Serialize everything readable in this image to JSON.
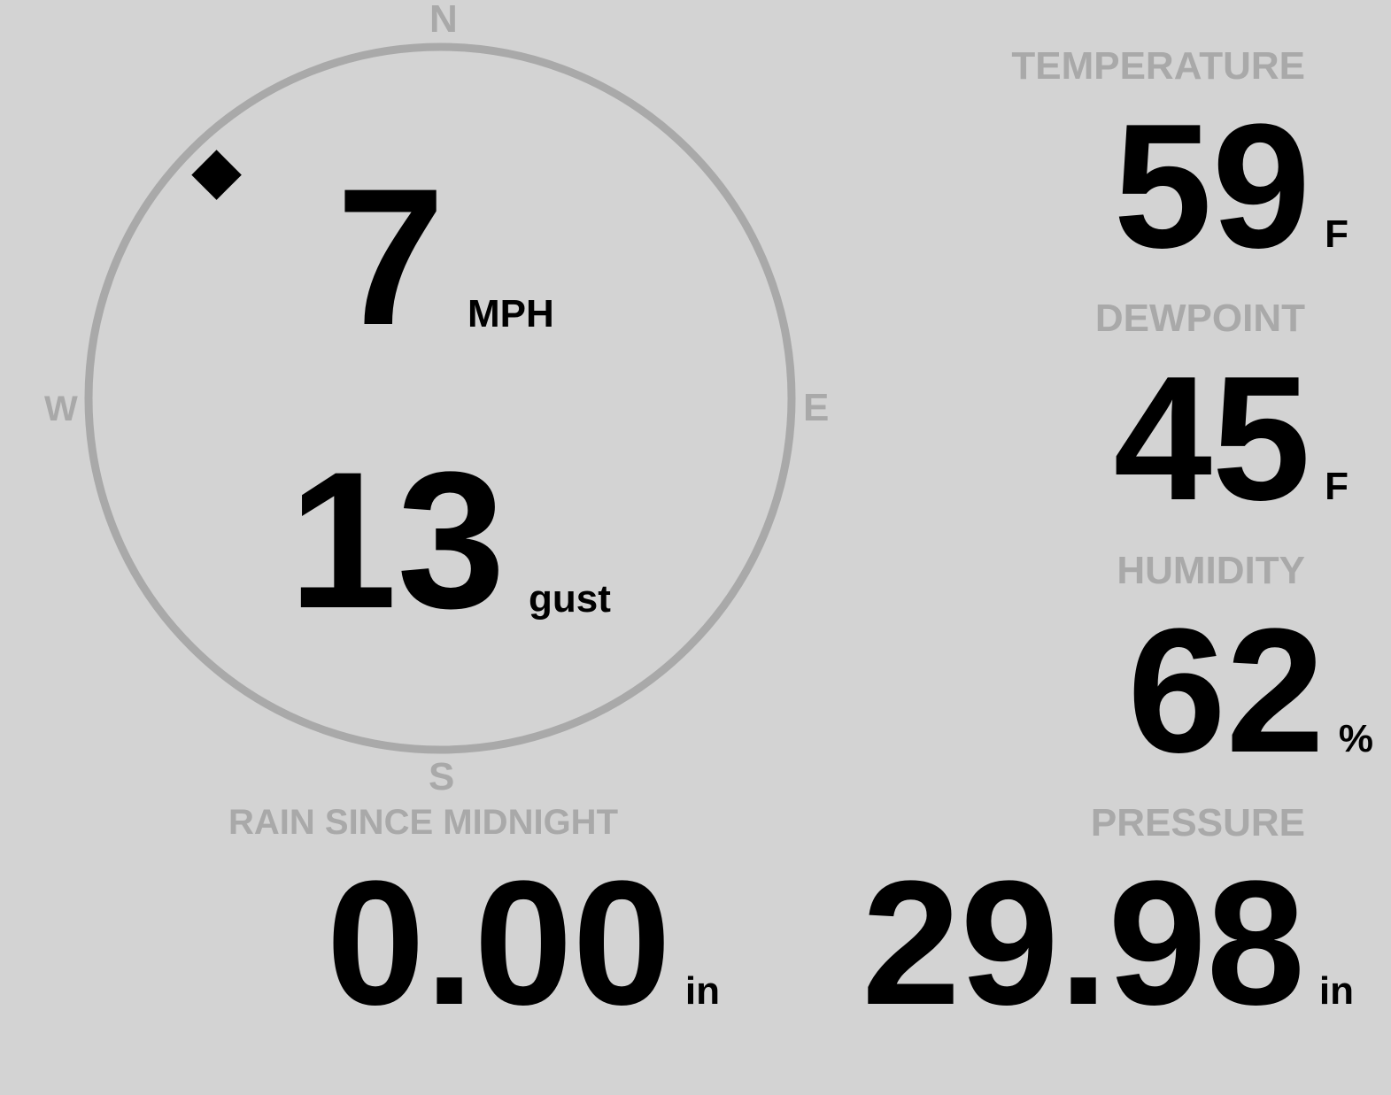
{
  "compass": {
    "n": "N",
    "e": "E",
    "s": "S",
    "w": "W",
    "wind_direction_deg": 315,
    "ring_color": "#a9a9a9"
  },
  "wind": {
    "speed": "7",
    "speed_unit": "MPH",
    "gust": "13",
    "gust_unit": "gust"
  },
  "temperature": {
    "label": "TEMPERATURE",
    "value": "59",
    "unit": "F"
  },
  "dewpoint": {
    "label": "DEWPOINT",
    "value": "45",
    "unit": "F"
  },
  "humidity": {
    "label": "HUMIDITY",
    "value": "62",
    "unit": "%"
  },
  "rain": {
    "label": "RAIN SINCE MIDNIGHT",
    "value": "0.00",
    "unit": "in"
  },
  "pressure": {
    "label": "PRESSURE",
    "value": "29.98",
    "unit": "in"
  }
}
